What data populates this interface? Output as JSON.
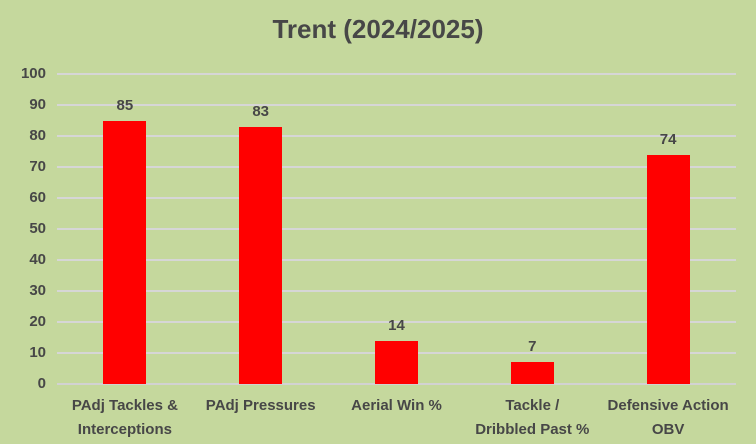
{
  "chart_data": {
    "type": "bar",
    "title": "Trent (2024/2025)",
    "categories": [
      "PAdj Tackles & Interceptions",
      "PAdj Pressures",
      "Aerial Win %",
      "Tackle / Dribbled Past %",
      "Defensive Action OBV"
    ],
    "category_lines": [
      [
        "PAdj Tackles &",
        "Interceptions"
      ],
      [
        "PAdj Pressures"
      ],
      [
        "Aerial Win %"
      ],
      [
        "Tackle /",
        "Dribbled Past %"
      ],
      [
        "Defensive Action",
        "OBV"
      ]
    ],
    "values": [
      85,
      83,
      14,
      7,
      74
    ],
    "data_labels": [
      "85",
      "83",
      "14",
      "7",
      "74"
    ],
    "xlabel": "",
    "ylabel": "",
    "ylim": [
      0,
      100
    ],
    "ytick_interval": 10,
    "ytick_labels": [
      "0",
      "10",
      "20",
      "30",
      "40",
      "50",
      "60",
      "70",
      "80",
      "90",
      "100"
    ],
    "grid": true,
    "legend": "none",
    "colors": {
      "background": "#C5D89D",
      "bar": "#FF0000",
      "text": "#474747",
      "gridline": "#D6D6D6",
      "axis_line": "#D2D2D2"
    }
  }
}
